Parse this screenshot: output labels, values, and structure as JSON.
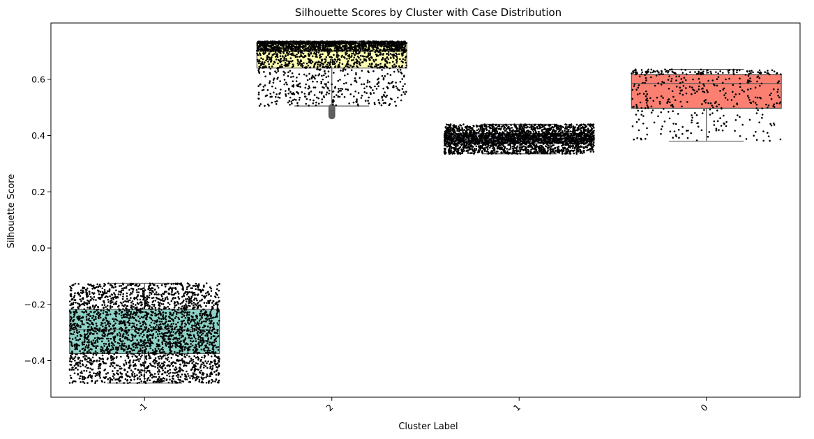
{
  "chart_data": {
    "type": "boxplot",
    "title": "Silhouette Scores by Cluster with Case Distribution",
    "xlabel": "Cluster Label",
    "ylabel": "Silhouette Score",
    "ylim": [
      -0.53,
      0.8
    ],
    "y_ticks": [
      -0.4,
      -0.2,
      0.0,
      0.2,
      0.4,
      0.6
    ],
    "y_tick_labels": [
      "−0.4",
      "−0.2",
      "0.0",
      "0.2",
      "0.4",
      "0.6"
    ],
    "x_tick_rotation_deg": 45,
    "grid": false,
    "categories": [
      "-1",
      "2",
      "1",
      "0"
    ],
    "boxes": [
      {
        "label": "-1",
        "color": "#8DD3C7",
        "whisker_low": -0.48,
        "q1": -0.375,
        "median": -0.29,
        "q3": -0.218,
        "whisker_high": -0.125,
        "outliers": [],
        "point_count": 2800
      },
      {
        "label": "2",
        "color": "#FFFFB3",
        "whisker_low": 0.505,
        "q1": 0.64,
        "median": 0.7,
        "q3": 0.727,
        "whisker_high": 0.735,
        "outliers": [
          0.47,
          0.475,
          0.48,
          0.485,
          0.49,
          0.495,
          0.5
        ],
        "point_count": 2200
      },
      {
        "label": "1",
        "color": "#BEBADA",
        "whisker_low": 0.335,
        "q1": 0.372,
        "median": 0.39,
        "q3": 0.407,
        "whisker_high": 0.44,
        "outliers": [],
        "point_count": 2600
      },
      {
        "label": "0",
        "color": "#FB8072",
        "whisker_low": 0.38,
        "q1": 0.497,
        "median": 0.585,
        "q3": 0.617,
        "whisker_high": 0.635,
        "outliers": [],
        "point_count": 420
      }
    ],
    "overlay": "black jittered strip points (case distribution)"
  }
}
